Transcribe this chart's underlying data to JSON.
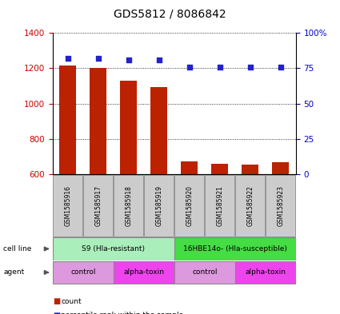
{
  "title": "GDS5812 / 8086842",
  "samples": [
    "GSM1585916",
    "GSM1585917",
    "GSM1585918",
    "GSM1585919",
    "GSM1585920",
    "GSM1585921",
    "GSM1585922",
    "GSM1585923"
  ],
  "counts": [
    1215,
    1200,
    1130,
    1095,
    675,
    660,
    655,
    670
  ],
  "percentiles": [
    82,
    82,
    81,
    81,
    76,
    76,
    76,
    76
  ],
  "ylim_left": [
    600,
    1400
  ],
  "ylim_right": [
    0,
    100
  ],
  "bar_color": "#bb2200",
  "dot_color": "#2222cc",
  "cell_line_groups": [
    {
      "label": "S9 (Hla-resistant)",
      "start": 0,
      "end": 4,
      "color": "#aaeebb"
    },
    {
      "label": "16HBE14o- (Hla-susceptible)",
      "start": 4,
      "end": 8,
      "color": "#44dd44"
    }
  ],
  "agent_groups": [
    {
      "label": "control",
      "start": 0,
      "end": 2,
      "color": "#dd99dd"
    },
    {
      "label": "alpha-toxin",
      "start": 2,
      "end": 4,
      "color": "#ee44ee"
    },
    {
      "label": "control",
      "start": 4,
      "end": 6,
      "color": "#dd99dd"
    },
    {
      "label": "alpha-toxin",
      "start": 6,
      "end": 8,
      "color": "#ee44ee"
    }
  ],
  "legend_count_color": "#bb2200",
  "legend_percentile_color": "#2222cc",
  "tick_values_left": [
    600,
    800,
    1000,
    1200,
    1400
  ],
  "tick_values_right": [
    0,
    25,
    50,
    75,
    100
  ],
  "tick_labels_right": [
    "0",
    "25",
    "50",
    "75",
    "100%"
  ],
  "sample_box_color": "#cccccc",
  "left_axis_color": "#cc0000",
  "right_axis_color": "#0000cc"
}
